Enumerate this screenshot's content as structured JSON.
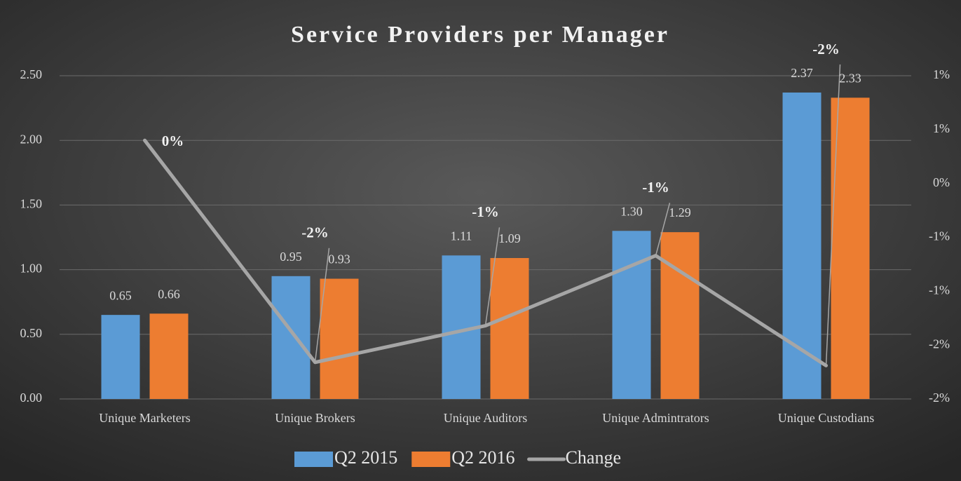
{
  "chart_data": {
    "type": "bar_line",
    "title": "Service Providers per Manager",
    "categories": [
      "Unique Marketers",
      "Unique Brokers",
      "Unique Auditors",
      "Unique Admintrators",
      "Unique Custodians"
    ],
    "series": [
      {
        "name": "Q2 2015",
        "color": "#5b9bd5",
        "type": "bar",
        "values": [
          0.65,
          0.95,
          1.11,
          1.3,
          2.37
        ],
        "value_labels": [
          "0.65",
          "0.95",
          "1.11",
          "1.30",
          "2.37"
        ]
      },
      {
        "name": "Q2 2016",
        "color": "#ed7d31",
        "type": "bar",
        "values": [
          0.66,
          0.93,
          1.09,
          1.29,
          2.33
        ],
        "value_labels": [
          "0.66",
          "0.93",
          "1.09",
          "1.29",
          "2.33"
        ]
      },
      {
        "name": "Change",
        "color": "#a6a6a6",
        "type": "line",
        "axis": "y2",
        "values": [
          0.4,
          -1.66,
          -1.32,
          -0.67,
          -1.69
        ],
        "value_labels": [
          "0%",
          "-2%",
          "-1%",
          "-1%",
          "-2%"
        ]
      }
    ],
    "ylim": [
      0,
      2.5
    ],
    "yticks": [
      {
        "value": 0,
        "label": "0.00"
      },
      {
        "value": 0.5,
        "label": "0.50"
      },
      {
        "value": 1,
        "label": "1.00"
      },
      {
        "value": 1.5,
        "label": "1.50"
      },
      {
        "value": 2,
        "label": "2.00"
      },
      {
        "value": 2.5,
        "label": "2.50"
      }
    ],
    "y2lim": [
      -2,
      1
    ],
    "y2ticks": [
      {
        "value": -2,
        "label": "-2%"
      },
      {
        "value": -1.5,
        "label": "-2%"
      },
      {
        "value": -1,
        "label": "-1%"
      },
      {
        "value": -0.5,
        "label": "-1%"
      },
      {
        "value": 0,
        "label": "0%"
      },
      {
        "value": 0.5,
        "label": "1%"
      },
      {
        "value": 1,
        "label": "1%"
      }
    ],
    "grid": true,
    "legend": "bottom"
  }
}
